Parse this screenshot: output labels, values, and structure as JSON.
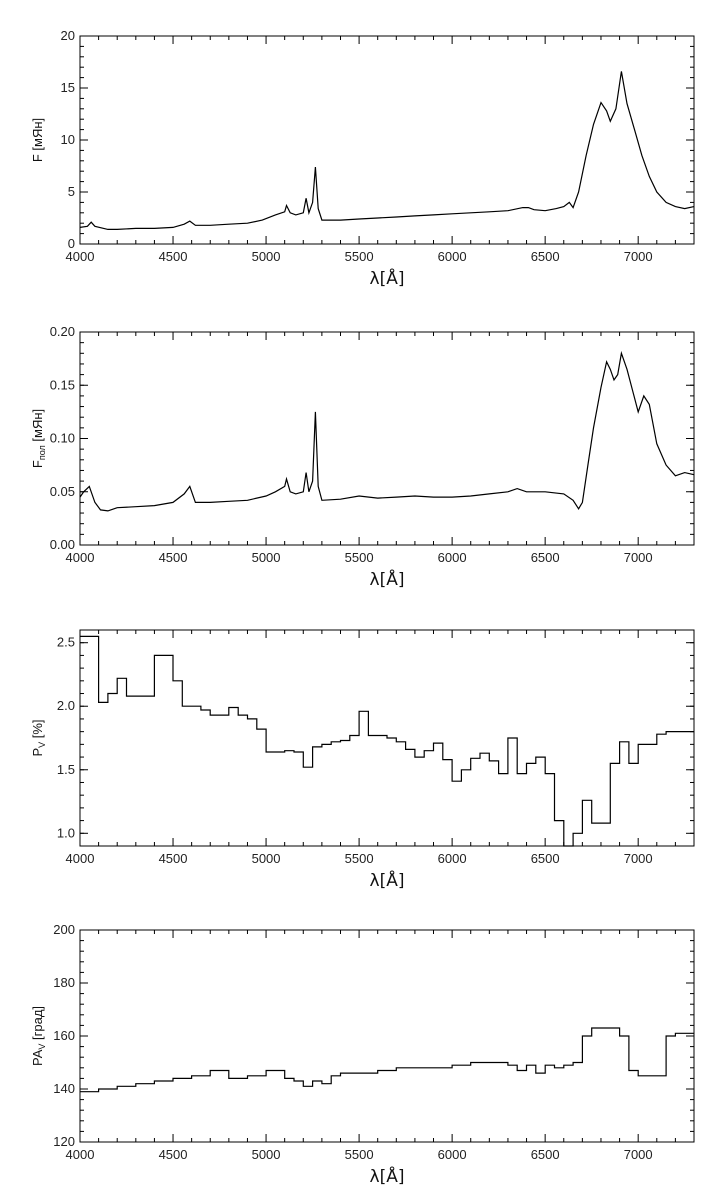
{
  "chart_data": [
    {
      "type": "line",
      "ylabel": "F [мЯн]",
      "xlabel": "λ[Å]",
      "xlim": [
        4000,
        7300
      ],
      "ylim": [
        0,
        20
      ],
      "xticks": [
        4000,
        4500,
        5000,
        5500,
        6000,
        6500,
        7000
      ],
      "yticks": [
        0,
        5,
        10,
        15,
        20
      ],
      "yticklabels": [
        "0",
        "5",
        "10",
        "15",
        "20"
      ],
      "step": false,
      "series": [
        {
          "x": [
            4000,
            4040,
            4060,
            4080,
            4150,
            4200,
            4300,
            4400,
            4500,
            4560,
            4590,
            4620,
            4700,
            4800,
            4900,
            4980,
            5050,
            5100,
            5110,
            5130,
            5160,
            5200,
            5215,
            5230,
            5250,
            5265,
            5280,
            5300,
            5400,
            5500,
            5600,
            5700,
            5800,
            5900,
            6000,
            6100,
            6200,
            6300,
            6380,
            6410,
            6440,
            6500,
            6560,
            6600,
            6630,
            6650,
            6680,
            6720,
            6760,
            6800,
            6830,
            6850,
            6880,
            6910,
            6940,
            6980,
            7020,
            7060,
            7100,
            7150,
            7200,
            7250,
            7300
          ],
          "y": [
            1.6,
            1.7,
            2.1,
            1.7,
            1.4,
            1.4,
            1.5,
            1.5,
            1.6,
            1.9,
            2.2,
            1.8,
            1.8,
            1.9,
            2.0,
            2.3,
            2.8,
            3.1,
            3.7,
            3.0,
            2.8,
            3.0,
            4.4,
            3.0,
            4.0,
            7.4,
            3.4,
            2.3,
            2.3,
            2.4,
            2.5,
            2.6,
            2.7,
            2.8,
            2.9,
            3.0,
            3.1,
            3.2,
            3.5,
            3.5,
            3.3,
            3.2,
            3.4,
            3.6,
            4.0,
            3.5,
            5.0,
            8.5,
            11.5,
            13.6,
            12.8,
            11.8,
            13.0,
            16.6,
            13.5,
            11.0,
            8.5,
            6.5,
            5.0,
            4.0,
            3.6,
            3.4,
            3.6
          ]
        }
      ]
    },
    {
      "type": "line",
      "ylabel": "Fпол [мЯн]",
      "xlabel": "λ[Å]",
      "xlim": [
        4000,
        7300
      ],
      "ylim": [
        0,
        0.2
      ],
      "xticks": [
        4000,
        4500,
        5000,
        5500,
        6000,
        6500,
        7000
      ],
      "yticks": [
        0,
        0.05,
        0.1,
        0.15,
        0.2
      ],
      "yticklabels": [
        "0.00",
        "0.05",
        "0.10",
        "0.15",
        "0.20"
      ],
      "step": false,
      "series": [
        {
          "x": [
            4000,
            4020,
            4050,
            4080,
            4110,
            4150,
            4200,
            4300,
            4400,
            4500,
            4560,
            4590,
            4620,
            4700,
            4800,
            4900,
            5000,
            5050,
            5100,
            5110,
            5130,
            5160,
            5200,
            5215,
            5230,
            5250,
            5265,
            5280,
            5300,
            5400,
            5500,
            5600,
            5700,
            5800,
            5900,
            6000,
            6100,
            6200,
            6300,
            6350,
            6400,
            6500,
            6600,
            6650,
            6680,
            6700,
            6730,
            6760,
            6800,
            6830,
            6850,
            6870,
            6890,
            6910,
            6940,
            6970,
            7000,
            7030,
            7060,
            7100,
            7150,
            7200,
            7250,
            7300
          ],
          "y": [
            0.045,
            0.05,
            0.055,
            0.04,
            0.033,
            0.032,
            0.035,
            0.036,
            0.037,
            0.04,
            0.048,
            0.055,
            0.04,
            0.04,
            0.041,
            0.042,
            0.046,
            0.05,
            0.055,
            0.062,
            0.05,
            0.048,
            0.05,
            0.068,
            0.05,
            0.06,
            0.125,
            0.055,
            0.042,
            0.043,
            0.046,
            0.044,
            0.045,
            0.046,
            0.045,
            0.045,
            0.046,
            0.048,
            0.05,
            0.053,
            0.05,
            0.05,
            0.048,
            0.042,
            0.034,
            0.04,
            0.075,
            0.11,
            0.148,
            0.172,
            0.165,
            0.155,
            0.16,
            0.18,
            0.165,
            0.145,
            0.125,
            0.14,
            0.132,
            0.095,
            0.075,
            0.065,
            0.068,
            0.066
          ]
        }
      ]
    },
    {
      "type": "line",
      "ylabel": "PV [%]",
      "xlabel": "λ[Å]",
      "xlim": [
        4000,
        7300
      ],
      "ylim": [
        0.9,
        2.6
      ],
      "xticks": [
        4000,
        4500,
        5000,
        5500,
        6000,
        6500,
        7000
      ],
      "yticks": [
        1.0,
        1.5,
        2.0,
        2.5
      ],
      "yticklabels": [
        "1.0",
        "1.5",
        "2.0",
        "2.5"
      ],
      "step": true,
      "series": [
        {
          "x": [
            4000,
            4100,
            4150,
            4200,
            4250,
            4300,
            4350,
            4400,
            4450,
            4500,
            4550,
            4600,
            4650,
            4700,
            4750,
            4800,
            4850,
            4900,
            4950,
            5000,
            5050,
            5100,
            5150,
            5200,
            5250,
            5300,
            5350,
            5400,
            5450,
            5500,
            5550,
            5600,
            5650,
            5700,
            5750,
            5800,
            5850,
            5900,
            5950,
            6000,
            6050,
            6100,
            6150,
            6200,
            6250,
            6300,
            6350,
            6400,
            6450,
            6500,
            6550,
            6600,
            6650,
            6700,
            6750,
            6800,
            6850,
            6900,
            6950,
            7000,
            7050,
            7100,
            7150,
            7200,
            7250,
            7300
          ],
          "y": [
            2.55,
            2.03,
            2.1,
            2.22,
            2.08,
            2.08,
            2.08,
            2.4,
            2.4,
            2.2,
            2.0,
            2.0,
            1.97,
            1.93,
            1.93,
            1.99,
            1.93,
            1.9,
            1.82,
            1.64,
            1.64,
            1.65,
            1.64,
            1.52,
            1.68,
            1.7,
            1.72,
            1.73,
            1.77,
            1.96,
            1.77,
            1.77,
            1.75,
            1.72,
            1.66,
            1.6,
            1.65,
            1.71,
            1.58,
            1.41,
            1.5,
            1.59,
            1.63,
            1.57,
            1.47,
            1.75,
            1.47,
            1.55,
            1.6,
            1.47,
            1.1,
            0.9,
            1.0,
            1.26,
            1.08,
            1.08,
            1.55,
            1.72,
            1.55,
            1.7,
            1.7,
            1.78,
            1.8,
            1.8,
            1.8,
            1.8
          ]
        }
      ]
    },
    {
      "type": "line",
      "ylabel": "PAV [град]",
      "xlabel": "λ[Å]",
      "xlim": [
        4000,
        7300
      ],
      "ylim": [
        120,
        200
      ],
      "xticks": [
        4000,
        4500,
        5000,
        5500,
        6000,
        6500,
        7000
      ],
      "yticks": [
        120,
        140,
        160,
        180,
        200
      ],
      "yticklabels": [
        "120",
        "140",
        "160",
        "180",
        "200"
      ],
      "step": true,
      "series": [
        {
          "x": [
            4000,
            4100,
            4200,
            4300,
            4400,
            4500,
            4600,
            4700,
            4800,
            4900,
            5000,
            5050,
            5100,
            5150,
            5200,
            5250,
            5300,
            5350,
            5400,
            5450,
            5500,
            5600,
            5700,
            5800,
            5900,
            6000,
            6100,
            6200,
            6300,
            6350,
            6400,
            6450,
            6500,
            6550,
            6600,
            6650,
            6700,
            6750,
            6800,
            6850,
            6900,
            6950,
            7000,
            7050,
            7100,
            7150,
            7200,
            7250,
            7300
          ],
          "y": [
            139,
            140,
            141,
            142,
            143,
            144,
            145,
            147,
            144,
            145,
            147,
            147,
            144,
            143,
            141,
            143,
            142,
            145,
            146,
            146,
            146,
            147,
            148,
            148,
            148,
            149,
            150,
            150,
            149,
            147,
            149,
            146,
            149,
            148,
            149,
            150,
            160,
            163,
            163,
            163,
            160,
            147,
            145,
            145,
            145,
            160,
            161,
            161,
            161
          ]
        }
      ]
    }
  ]
}
